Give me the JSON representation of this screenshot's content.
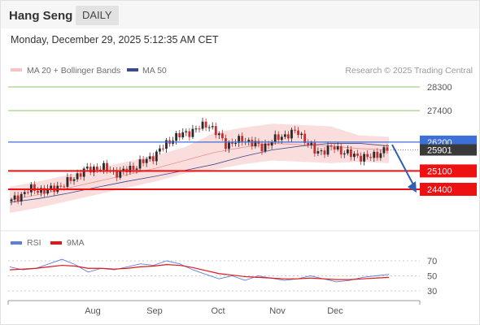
{
  "header": {
    "title": "Hang Seng",
    "period": "DAILY"
  },
  "timestamp": "Monday, December 29, 2025 5:12:35 AM CET",
  "legend": {
    "bb_label": "MA 20 + Bollinger Bands",
    "ma50_label": "MA 50",
    "credit": "Research © 2025 Trading Central"
  },
  "colors": {
    "green_line": "#8cc768",
    "blue_line": "#3d6fd8",
    "red_line": "#ee1111",
    "arrow": "#2e5fb0",
    "candle_up": "#2a2a2a",
    "candle_down": "#c82e2e",
    "bollinger": "#f6c2c2",
    "ma50": "#3a4a8a",
    "rsi": "#5b80dc",
    "rsi_ma": "#e01818"
  },
  "chart_data": [
    {
      "type": "candlestick",
      "title": "Hang Seng",
      "x_labels": [
        "Aug",
        "Sep",
        "Oct",
        "Nov",
        "Dec"
      ],
      "ylim": [
        23700,
        28500
      ],
      "levels": [
        {
          "value": 28300,
          "label": "28300",
          "color": "green"
        },
        {
          "value": 27400,
          "label": "27400",
          "color": "green"
        },
        {
          "value": 26200,
          "label": "26200",
          "color": "blue"
        },
        {
          "value": 25100,
          "label": "25100",
          "color": "red"
        },
        {
          "value": 24400,
          "label": "24400",
          "color": "red"
        }
      ],
      "last_price": {
        "value": 25901,
        "label": "25901"
      },
      "forecast": {
        "from": 26100,
        "to": 24400,
        "direction": "down"
      },
      "ma20_approx": [
        24000,
        24200,
        24450,
        24700,
        24950,
        25200,
        25500,
        25800,
        26000,
        26150,
        26100,
        26050,
        25950,
        25900
      ],
      "ma50_approx": [
        23900,
        24050,
        24250,
        24480,
        24700,
        24900,
        25120,
        25350,
        25650,
        25900,
        26050,
        26150,
        26150,
        26050
      ],
      "candles_close_approx": [
        23950,
        24400,
        24350,
        24600,
        25100,
        25250,
        25000,
        25300,
        25700,
        26350,
        26600,
        26900,
        26100,
        26300,
        26000,
        26400,
        26600,
        25800,
        26000,
        25700,
        25600,
        25950
      ]
    },
    {
      "type": "line",
      "title": "RSI",
      "series": [
        {
          "name": "RSI",
          "values": [
            62,
            58,
            60,
            66,
            72,
            65,
            55,
            60,
            58,
            62,
            66,
            64,
            70,
            66,
            58,
            52,
            46,
            50,
            44,
            50,
            47,
            44,
            46,
            50,
            46,
            42,
            44,
            48,
            50,
            52
          ]
        },
        {
          "name": "9MA",
          "values": [
            58,
            59,
            60,
            62,
            64,
            63,
            60,
            60,
            59,
            60,
            62,
            63,
            65,
            64,
            61,
            57,
            53,
            51,
            49,
            48,
            47,
            46,
            46,
            47,
            46,
            45,
            45,
            46,
            47,
            48
          ]
        }
      ],
      "ylim": [
        20,
        80
      ],
      "yticks": [
        70,
        50,
        30
      ],
      "x_labels": [
        "Aug",
        "Sep",
        "Oct",
        "Nov",
        "Dec"
      ]
    }
  ]
}
